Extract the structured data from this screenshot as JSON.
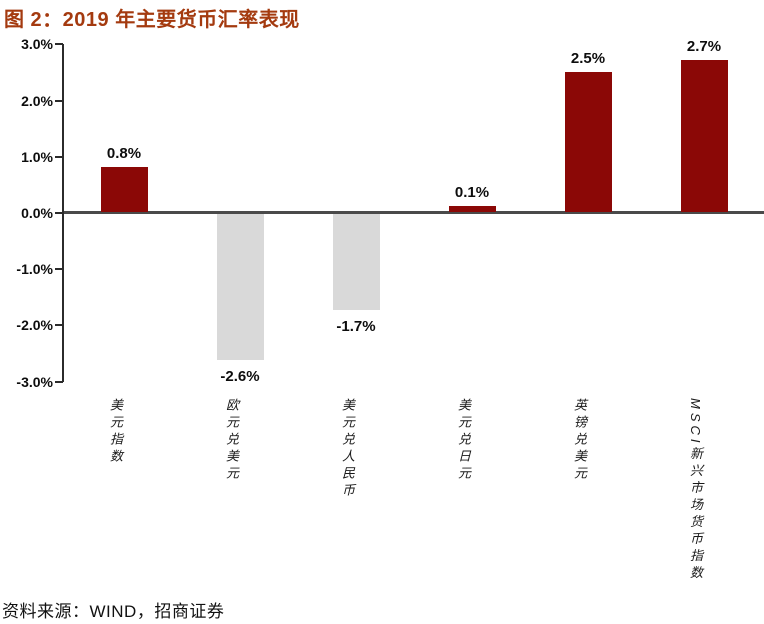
{
  "header": {
    "title": "图 2：2019 年主要货币汇率表现"
  },
  "source": {
    "text": "资料来源：WIND，招商证券"
  },
  "colors": {
    "title": "#A43A0F",
    "bar_red": "#8B0806",
    "bar_gray": "#D9D9D9",
    "axis": "#2B2B2B",
    "zero_line": "#4A4A4A",
    "text": "#0D0D0D"
  },
  "chart_data": {
    "type": "bar",
    "title": "图 2：2019 年主要货币汇率表现",
    "categories": [
      "美元指数",
      "欧元兑美元",
      "美元兑人民币",
      "美元兑日元",
      "英镑兑美元",
      "MSCI新兴市场货币指数"
    ],
    "values": [
      0.8,
      -2.6,
      -1.7,
      0.1,
      2.5,
      2.7
    ],
    "value_labels": [
      "0.8%",
      "-2.6%",
      "-1.7%",
      "0.1%",
      "2.5%",
      "2.7%"
    ],
    "bar_color_keys": [
      "bar_red",
      "bar_gray",
      "bar_gray",
      "bar_red",
      "bar_red",
      "bar_red"
    ],
    "xlabel": "",
    "ylabel": "",
    "ylim": [
      -3,
      3
    ],
    "ytick_values": [
      3,
      2,
      1,
      0,
      -1,
      -2,
      -3
    ],
    "ytick_labels": [
      "3.0%",
      "2.0%",
      "1.0%",
      "0.0%",
      "-1.0%",
      "-2.0%",
      "-3.0%"
    ],
    "grid": false,
    "legend": false,
    "source": "资料来源：WIND，招商证券"
  }
}
